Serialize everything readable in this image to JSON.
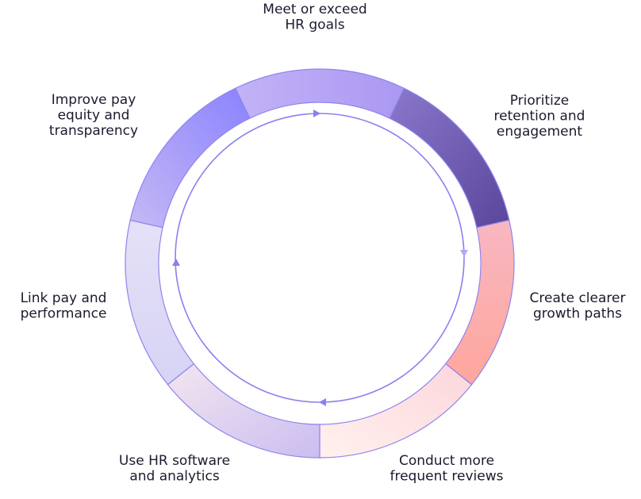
{
  "segments": [
    {
      "lines": [
        "Meet or exceed",
        "HR goals"
      ]
    },
    {
      "lines": [
        "Prioritize",
        "retention and",
        "engagement"
      ]
    },
    {
      "lines": [
        "Create clearer",
        "growth paths"
      ]
    },
    {
      "lines": [
        "Conduct more",
        "frequent reviews"
      ]
    },
    {
      "lines": [
        "Use HR software",
        "and analytics"
      ]
    },
    {
      "lines": [
        "Link pay and",
        "performance"
      ]
    },
    {
      "lines": [
        "Improve pay",
        "equity and",
        "transparency"
      ]
    }
  ]
}
